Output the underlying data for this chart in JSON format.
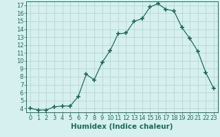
{
  "x": [
    0,
    1,
    2,
    3,
    4,
    5,
    6,
    7,
    8,
    9,
    10,
    11,
    12,
    13,
    14,
    15,
    16,
    17,
    18,
    19,
    20,
    21,
    22,
    23
  ],
  "y": [
    4.0,
    3.8,
    3.8,
    4.2,
    4.3,
    4.3,
    5.5,
    8.3,
    7.6,
    9.8,
    11.3,
    13.4,
    13.5,
    15.0,
    15.3,
    16.8,
    17.2,
    16.5,
    16.3,
    14.2,
    12.8,
    11.2,
    8.5,
    6.5
  ],
  "xlabel": "Humidex (Indice chaleur)",
  "xlim": [
    -0.5,
    23.5
  ],
  "ylim": [
    3.5,
    17.5
  ],
  "yticks": [
    4,
    5,
    6,
    7,
    8,
    9,
    10,
    11,
    12,
    13,
    14,
    15,
    16,
    17
  ],
  "xticks": [
    0,
    1,
    2,
    3,
    4,
    5,
    6,
    7,
    8,
    9,
    10,
    11,
    12,
    13,
    14,
    15,
    16,
    17,
    18,
    19,
    20,
    21,
    22,
    23
  ],
  "line_color": "#1a6b5a",
  "marker": "+",
  "bg_color": "#d6f0f0",
  "grid_color": "#b0d0d0",
  "xlabel_fontsize": 7.5,
  "tick_fontsize": 6
}
